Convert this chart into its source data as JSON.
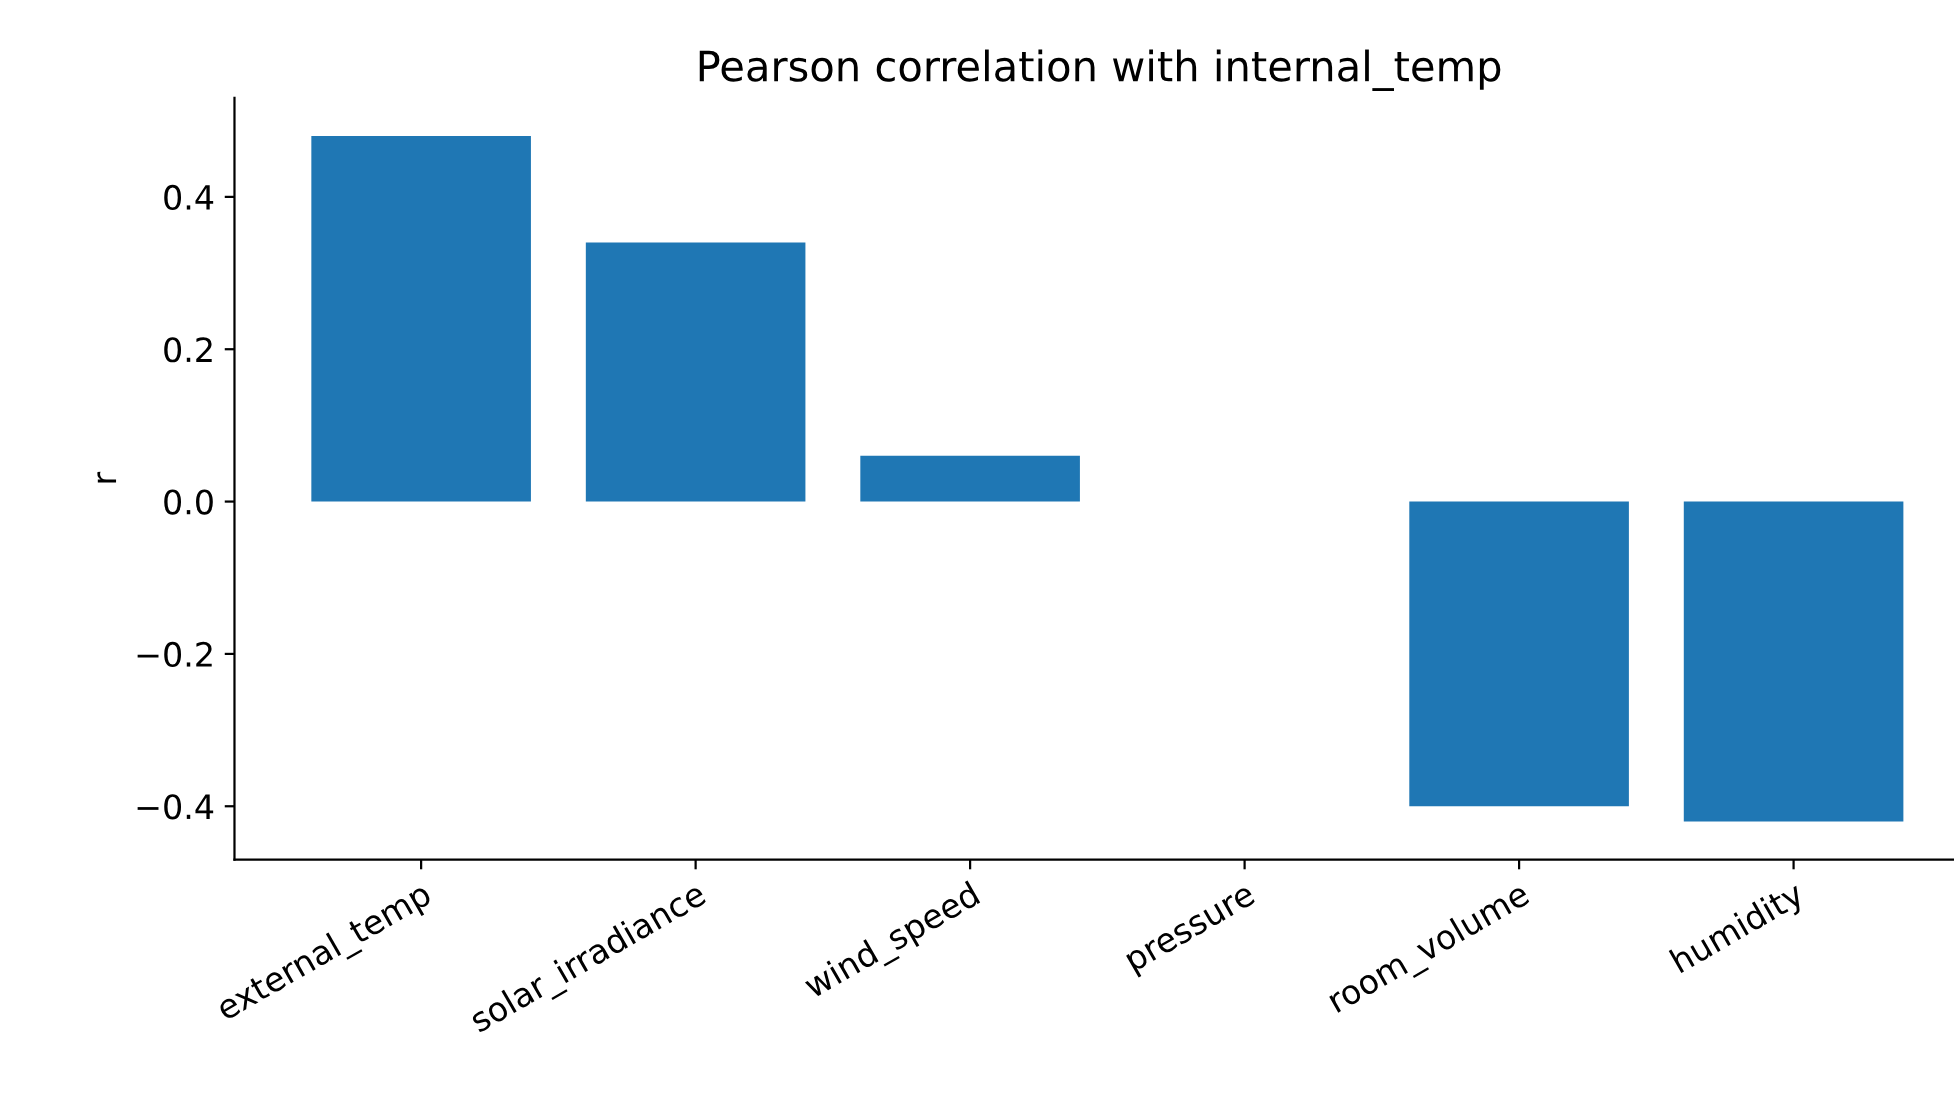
{
  "chart_data": {
    "type": "bar",
    "title": "Pearson correlation with internal_temp",
    "ylabel": "r",
    "categories": [
      "external_temp",
      "solar_irradiance",
      "wind_speed",
      "pressure",
      "room_volume",
      "humidity"
    ],
    "values": [
      0.48,
      0.34,
      0.06,
      0.0,
      -0.4,
      -0.42
    ],
    "color": "#1f77b4",
    "ylim": [
      -0.47,
      0.53
    ],
    "yticks": [
      {
        "value": -0.4,
        "label": "−0.4"
      },
      {
        "value": -0.2,
        "label": "−0.2"
      },
      {
        "value": 0.0,
        "label": "0.0"
      },
      {
        "value": 0.2,
        "label": "0.2"
      },
      {
        "value": 0.4,
        "label": "0.4"
      }
    ],
    "grid": false
  }
}
